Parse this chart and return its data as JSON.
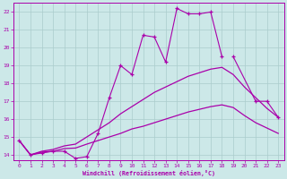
{
  "xlabel": "Windchill (Refroidissement éolien,°C)",
  "bg_color": "#cce8e8",
  "line_color": "#aa00aa",
  "grid_color": "#aacccc",
  "xlim": [
    -0.5,
    23.5
  ],
  "ylim": [
    13.7,
    22.5
  ],
  "yticks": [
    14,
    15,
    16,
    17,
    18,
    19,
    20,
    21,
    22
  ],
  "xticks": [
    0,
    1,
    2,
    3,
    4,
    5,
    6,
    7,
    8,
    9,
    10,
    11,
    12,
    13,
    14,
    15,
    16,
    17,
    18,
    19,
    20,
    21,
    22,
    23
  ],
  "series": [
    {
      "x": [
        0,
        1,
        2,
        3,
        4,
        5,
        6,
        7,
        8,
        9,
        10,
        11,
        12,
        13,
        14,
        15,
        16,
        17,
        18
      ],
      "y": [
        14.8,
        14.0,
        14.1,
        14.2,
        14.2,
        13.8,
        13.9,
        15.2,
        17.2,
        19.0,
        18.5,
        20.7,
        20.6,
        19.2,
        22.2,
        21.9,
        21.9,
        22.0,
        19.5
      ],
      "marker": true
    },
    {
      "x": [
        19,
        21,
        22,
        23
      ],
      "y": [
        19.5,
        17.0,
        17.0,
        16.1
      ],
      "marker": true
    },
    {
      "x": [
        0,
        1,
        2,
        3,
        4,
        5,
        6,
        7,
        8,
        9,
        10,
        11,
        12,
        13,
        14,
        15,
        16,
        17,
        18,
        19,
        20,
        21,
        22,
        23
      ],
      "y": [
        14.8,
        14.0,
        14.2,
        14.3,
        14.5,
        14.6,
        15.0,
        15.4,
        15.8,
        16.3,
        16.7,
        17.1,
        17.5,
        17.8,
        18.1,
        18.4,
        18.6,
        18.8,
        18.9,
        18.5,
        17.8,
        17.2,
        16.6,
        16.1
      ],
      "marker": false
    },
    {
      "x": [
        0,
        1,
        2,
        3,
        4,
        5,
        6,
        7,
        8,
        9,
        10,
        11,
        12,
        13,
        14,
        15,
        16,
        17,
        18,
        19,
        20,
        21,
        22,
        23
      ],
      "y": [
        14.8,
        14.0,
        14.15,
        14.2,
        14.35,
        14.38,
        14.6,
        14.8,
        15.0,
        15.2,
        15.45,
        15.6,
        15.8,
        16.0,
        16.2,
        16.4,
        16.55,
        16.7,
        16.8,
        16.65,
        16.2,
        15.8,
        15.5,
        15.2
      ],
      "marker": false
    }
  ]
}
